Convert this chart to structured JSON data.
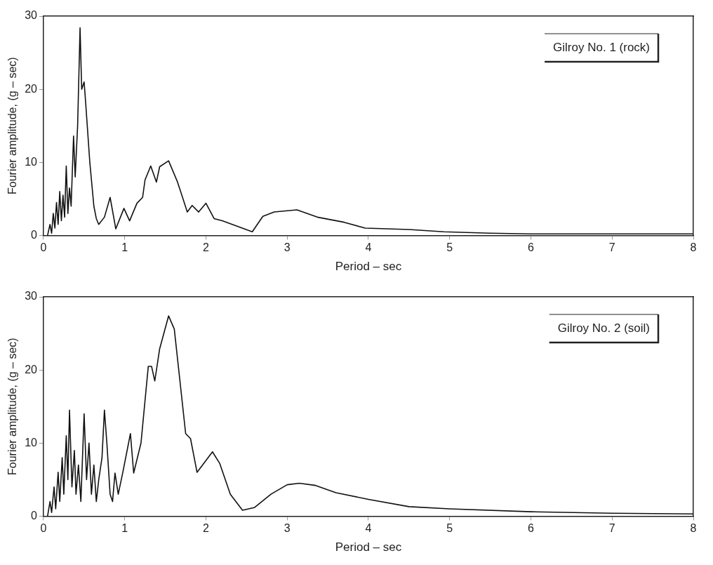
{
  "chart_data": [
    {
      "type": "line",
      "xlabel": "Period – sec",
      "ylabel": "Fourier amplitude, (g – sec)",
      "annotations": [
        "Gilroy No. 1 (rock)"
      ],
      "xlim": [
        0,
        8
      ],
      "xticks": [
        0,
        1,
        2,
        3,
        4,
        5,
        6,
        7,
        8
      ],
      "ylim": [
        0,
        30
      ],
      "yticks": [
        0,
        10,
        20,
        30
      ],
      "x": [
        0.05,
        0.08,
        0.1,
        0.12,
        0.14,
        0.16,
        0.18,
        0.2,
        0.22,
        0.24,
        0.26,
        0.28,
        0.3,
        0.32,
        0.34,
        0.37,
        0.39,
        0.42,
        0.45,
        0.47,
        0.5,
        0.52,
        0.57,
        0.62,
        0.65,
        0.68,
        0.75,
        0.82,
        0.89,
        0.99,
        1.06,
        1.15,
        1.22,
        1.25,
        1.32,
        1.39,
        1.43,
        1.54,
        1.65,
        1.77,
        1.83,
        1.91,
        2.0,
        2.1,
        2.2,
        2.4,
        2.57,
        2.7,
        2.84,
        3.12,
        3.37,
        3.7,
        3.96,
        4.5,
        4.93,
        5.5,
        6,
        7,
        8
      ],
      "series": [
        {
          "color": "#111111",
          "values": [
            0,
            1.5,
            0.3,
            3,
            1,
            4.5,
            1.5,
            6,
            2,
            5.5,
            2.5,
            9.5,
            3,
            6.5,
            4,
            13.6,
            8,
            15,
            28.4,
            20,
            21,
            18,
            10,
            4,
            2.3,
            1.5,
            2.5,
            5.2,
            0.9,
            3.7,
            2,
            4.4,
            5.2,
            7.6,
            9.5,
            7.3,
            9.4,
            10.2,
            7.3,
            3.2,
            4.1,
            3.2,
            4.4,
            2.3,
            2.0,
            1.2,
            0.5,
            2.6,
            3.2,
            3.5,
            2.5,
            1.8,
            1.0,
            0.8,
            0.5,
            0.3,
            0.2,
            0.2,
            0.2
          ]
        }
      ]
    },
    {
      "type": "line",
      "xlabel": "Period – sec",
      "ylabel": "Fourier amplitude, (g – sec)",
      "annotations": [
        "Gilroy No. 2 (soil)"
      ],
      "xlim": [
        0,
        8
      ],
      "xticks": [
        0,
        1,
        2,
        3,
        4,
        5,
        6,
        7,
        8
      ],
      "ylim": [
        0,
        30
      ],
      "yticks": [
        0,
        10,
        20,
        30
      ],
      "x": [
        0.05,
        0.08,
        0.1,
        0.13,
        0.15,
        0.18,
        0.2,
        0.23,
        0.25,
        0.28,
        0.3,
        0.32,
        0.35,
        0.38,
        0.4,
        0.43,
        0.46,
        0.5,
        0.53,
        0.56,
        0.59,
        0.62,
        0.65,
        0.68,
        0.72,
        0.75,
        0.78,
        0.82,
        0.85,
        0.88,
        0.92,
        0.98,
        1.07,
        1.11,
        1.2,
        1.29,
        1.33,
        1.37,
        1.43,
        1.54,
        1.61,
        1.75,
        1.81,
        1.89,
        2.08,
        2.17,
        2.3,
        2.45,
        2.6,
        2.8,
        3.0,
        3.15,
        3.35,
        3.6,
        4.0,
        4.5,
        5.0,
        6,
        7,
        8
      ],
      "series": [
        {
          "color": "#111111",
          "values": [
            0,
            2,
            0.5,
            4,
            1,
            6,
            2,
            8,
            3,
            11,
            5,
            14.5,
            4,
            9,
            3,
            7,
            2,
            14,
            5,
            10,
            3,
            7,
            2,
            5,
            8,
            14.5,
            10,
            3,
            2,
            5.9,
            3,
            6.2,
            11.3,
            5.9,
            10,
            20.5,
            20.5,
            18.5,
            22.9,
            27.4,
            25.6,
            11.3,
            10.6,
            6.0,
            8.8,
            7.2,
            3,
            0.8,
            1.2,
            3,
            4.3,
            4.5,
            4.2,
            3.2,
            2.3,
            1.3,
            1.0,
            0.6,
            0.4,
            0.3
          ]
        }
      ]
    }
  ]
}
